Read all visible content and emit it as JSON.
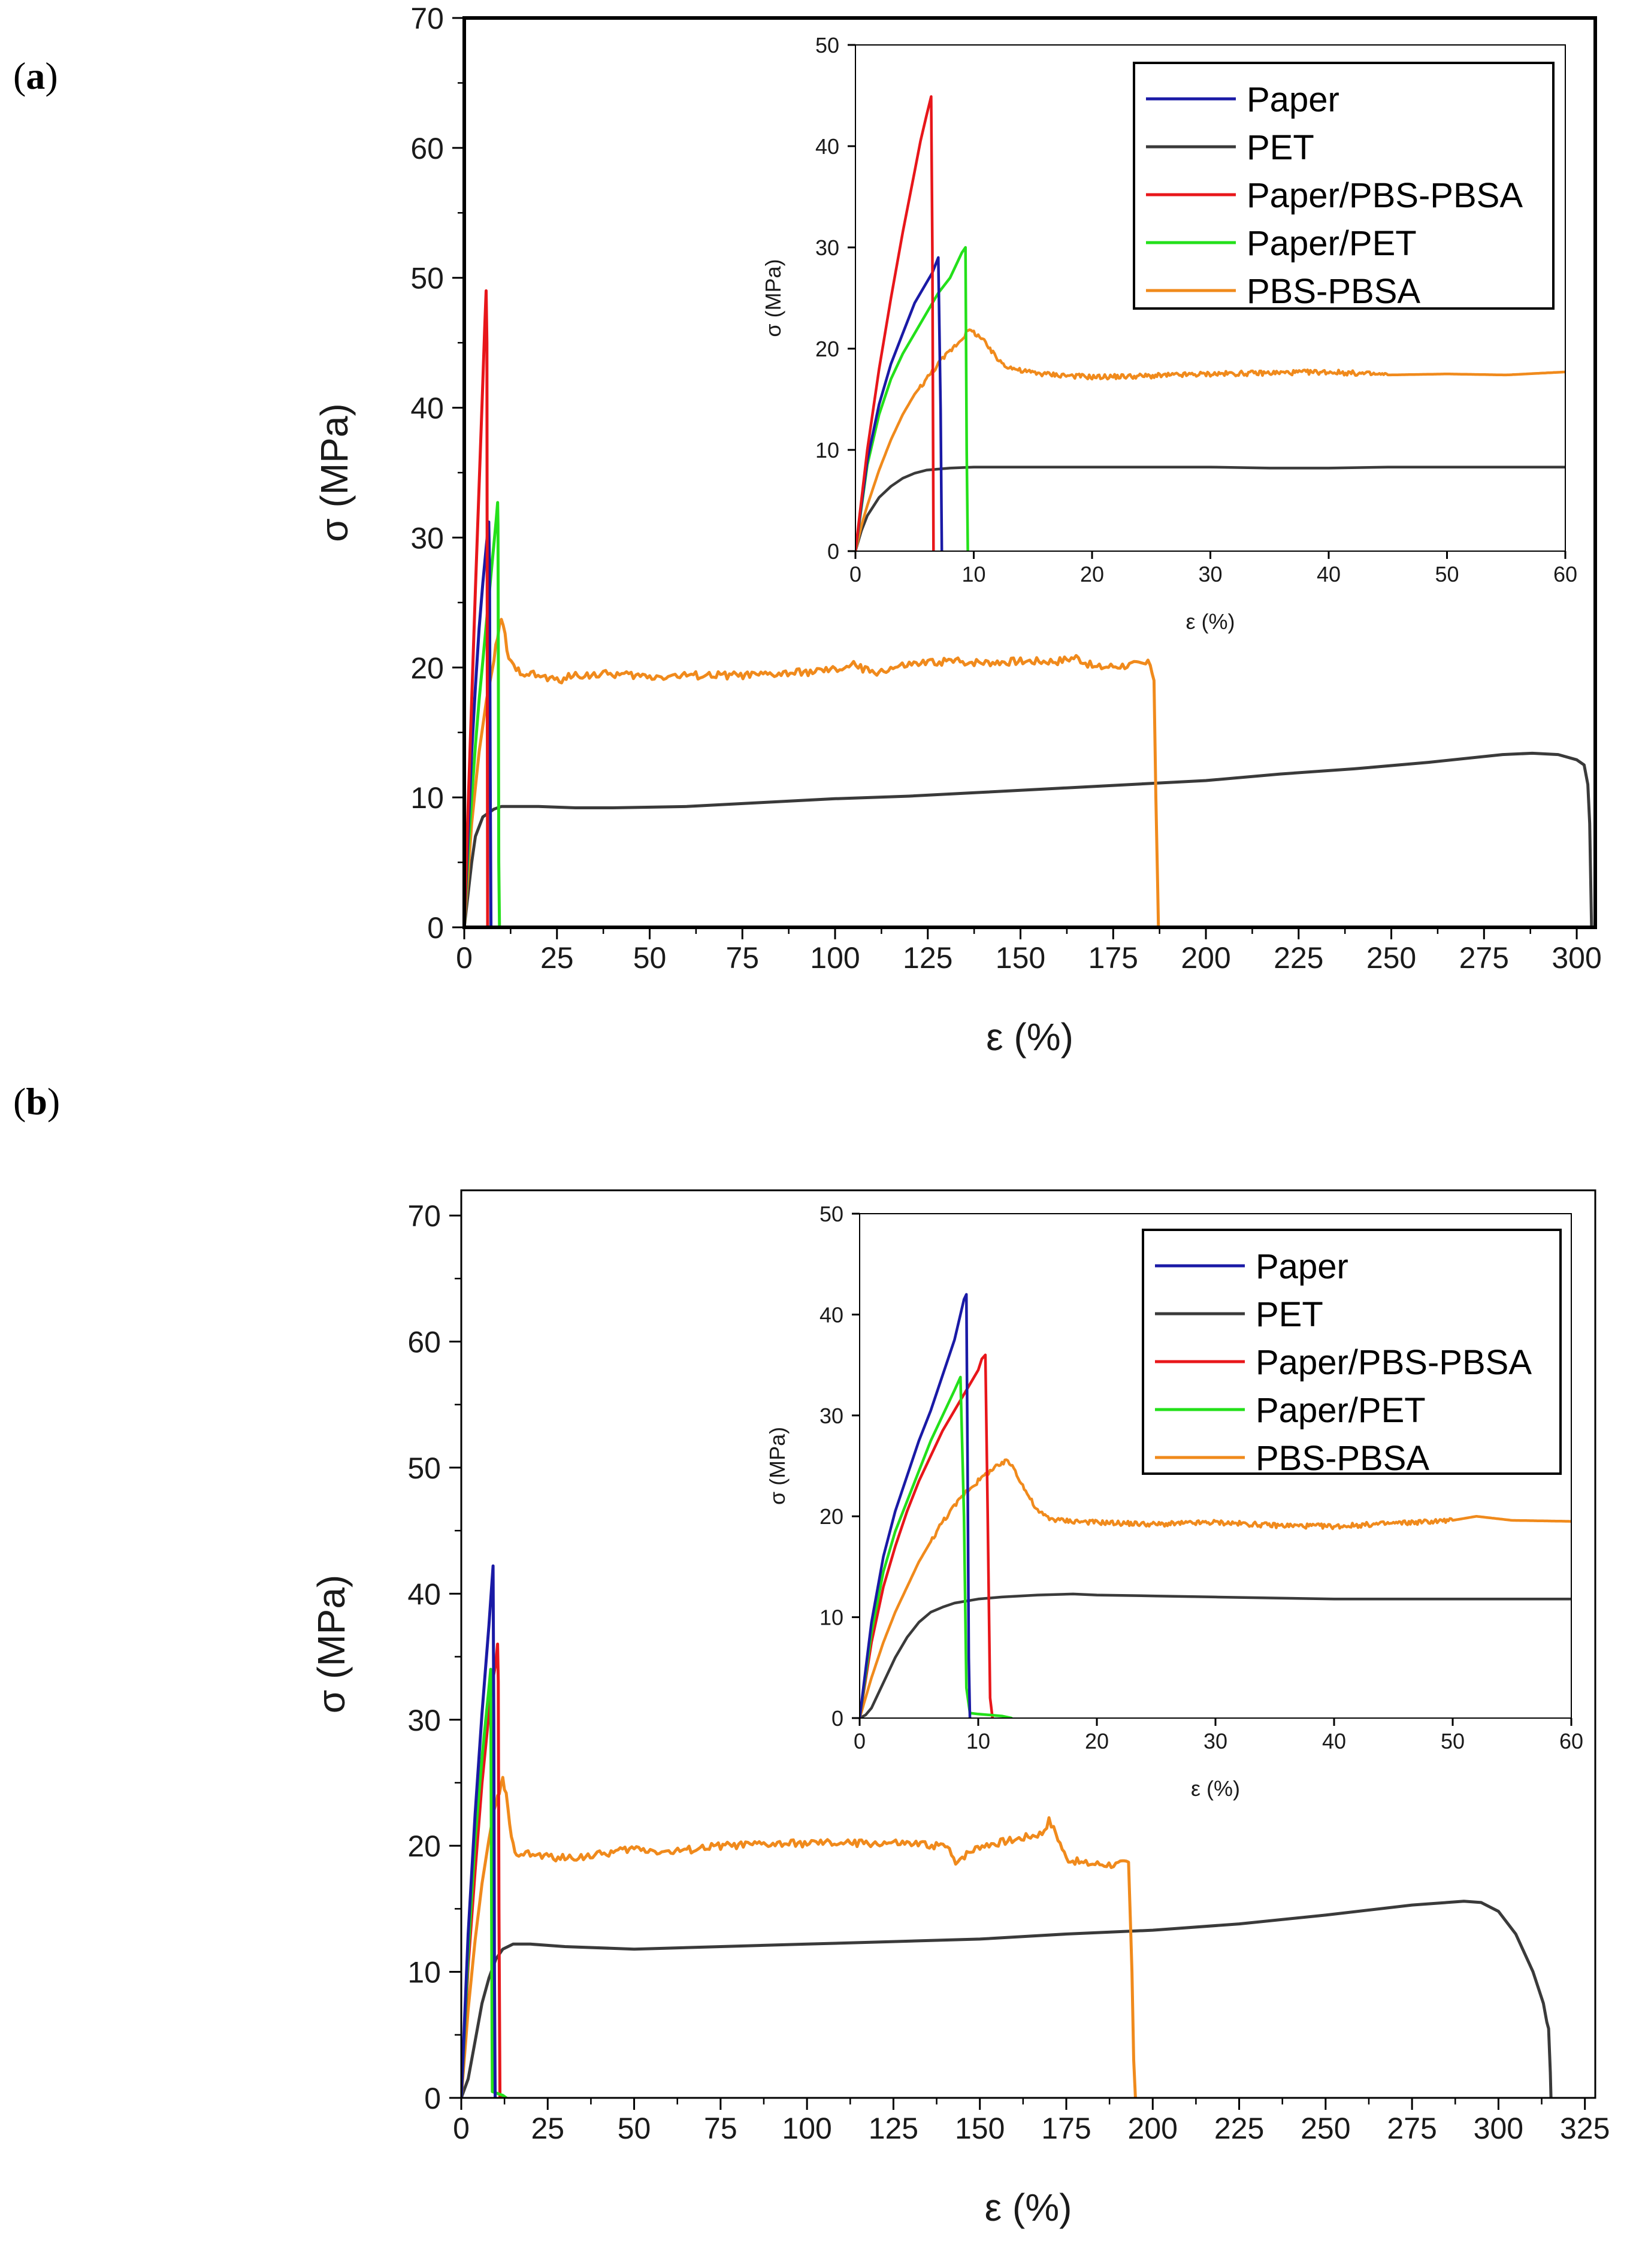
{
  "figure": {
    "panels": [
      {
        "label_open": "(",
        "label": "a",
        "label_close": ")"
      },
      {
        "label_open": "(",
        "label": "b",
        "label_close": ")"
      }
    ]
  },
  "chart_data": [
    {
      "id": "a-main",
      "type": "line",
      "panel": "a",
      "xlabel": "ε (%)",
      "ylabel": "σ (MPa)",
      "xlim": [
        0,
        305
      ],
      "ylim": [
        0,
        70
      ],
      "xticks": [
        0,
        25,
        50,
        75,
        100,
        125,
        150,
        175,
        200,
        225,
        250,
        275,
        300
      ],
      "yticks": [
        0,
        10,
        20,
        30,
        40,
        50,
        60,
        70
      ],
      "series": [
        {
          "name": "PET",
          "color": "#3a3a3a",
          "x": [
            0,
            1,
            2,
            3,
            5,
            8,
            10,
            20,
            30,
            40,
            60,
            80,
            100,
            120,
            140,
            160,
            180,
            200,
            220,
            240,
            260,
            280,
            288,
            295,
            300,
            302,
            303,
            303.5,
            304
          ],
          "y": [
            0,
            2.5,
            5.0,
            7.0,
            8.5,
            9.1,
            9.3,
            9.3,
            9.2,
            9.2,
            9.3,
            9.6,
            9.9,
            10.1,
            10.4,
            10.7,
            11.0,
            11.3,
            11.8,
            12.2,
            12.7,
            13.3,
            13.4,
            13.3,
            12.9,
            12.5,
            11.0,
            8.0,
            0
          ]
        },
        {
          "name": "PBS-PBSA",
          "color": "#f08a1c",
          "noise": 0.3,
          "x": [
            0,
            1,
            2,
            4,
            6,
            8,
            9,
            10,
            11,
            12,
            14,
            18,
            25,
            30,
            40,
            50,
            60,
            80,
            100,
            105,
            110,
            120,
            130,
            140,
            150,
            160,
            165,
            170,
            180,
            185,
            186,
            186.5,
            187,
            187.2
          ],
          "y": [
            0,
            4.0,
            8.0,
            13.5,
            17.5,
            20.5,
            22.5,
            23.6,
            22.5,
            20.5,
            19.8,
            19.5,
            19.0,
            19.4,
            19.5,
            19.3,
            19.4,
            19.4,
            19.8,
            20.2,
            19.6,
            20.2,
            20.5,
            20.4,
            20.5,
            20.5,
            20.8,
            20.0,
            20.2,
            20.3,
            19.0,
            10.0,
            3.0,
            0
          ]
        },
        {
          "name": "Paper/PET",
          "color": "#23e01a",
          "x": [
            0,
            1,
            2,
            3,
            4,
            5,
            6,
            7,
            8,
            8.6,
            9.0,
            9.1,
            9.2,
            9.3,
            9.5
          ],
          "y": [
            0,
            5.5,
            10.0,
            14.0,
            17.5,
            20.5,
            23.5,
            26.5,
            29.5,
            31.3,
            32.7,
            31.0,
            20.0,
            5.0,
            0
          ]
        },
        {
          "name": "Paper",
          "color": "#1a1aa6",
          "x": [
            0,
            1,
            2,
            3,
            4,
            5,
            6,
            6.6,
            6.8,
            7.0,
            7.2
          ],
          "y": [
            0,
            7.0,
            13.5,
            18.5,
            23.0,
            26.5,
            29.5,
            31.2,
            28.0,
            12.0,
            0
          ]
        },
        {
          "name": "Paper/PBS-PBSA",
          "color": "#e8161a",
          "x": [
            0,
            1,
            2,
            3,
            4,
            5,
            5.5,
            5.9,
            6.1,
            6.2,
            6.3
          ],
          "y": [
            0,
            9.0,
            17.5,
            26.0,
            34.0,
            42.0,
            46.0,
            49.0,
            45.0,
            20.0,
            0
          ]
        }
      ]
    },
    {
      "id": "a-inset",
      "type": "line",
      "panel": "a",
      "xlabel": "ε (%)",
      "ylabel": "σ (MPa)",
      "xlim": [
        0,
        60
      ],
      "ylim": [
        0,
        50
      ],
      "xticks": [
        0,
        10,
        20,
        30,
        40,
        50,
        60
      ],
      "yticks": [
        0,
        10,
        20,
        30,
        40,
        50
      ],
      "legend_position": "top-right",
      "legend": [
        "Paper",
        "PET",
        "Paper/PBS-PBSA",
        "Paper/PET",
        "PBS-PBSA"
      ],
      "series": [
        {
          "name": "PET",
          "color": "#3a3a3a",
          "x": [
            0,
            0.5,
            1,
            2,
            3,
            4,
            5,
            6,
            8,
            10,
            15,
            20,
            25,
            30,
            35,
            40,
            45,
            50,
            55,
            60
          ],
          "y": [
            0,
            2.0,
            3.5,
            5.3,
            6.4,
            7.2,
            7.7,
            8.0,
            8.2,
            8.3,
            8.3,
            8.3,
            8.3,
            8.3,
            8.2,
            8.2,
            8.3,
            8.3,
            8.3,
            8.3
          ]
        },
        {
          "name": "PBS-PBSA",
          "color": "#f08a1c",
          "noise": 0.25,
          "x": [
            0,
            0.5,
            1,
            2,
            3,
            4,
            5,
            6,
            7,
            8,
            9,
            9.5,
            10,
            10.5,
            11,
            11.5,
            12,
            12.5,
            13,
            14,
            16,
            20,
            25,
            30,
            35,
            40,
            45,
            50,
            55,
            60
          ],
          "y": [
            0,
            2.5,
            4.5,
            8.0,
            11.0,
            13.5,
            15.5,
            17.0,
            18.5,
            19.8,
            21.0,
            21.8,
            21.6,
            21.2,
            20.5,
            19.7,
            19.0,
            18.5,
            18.2,
            17.8,
            17.5,
            17.2,
            17.3,
            17.5,
            17.6,
            17.7,
            17.4,
            17.5,
            17.4,
            17.7
          ]
        },
        {
          "name": "Paper/PET",
          "color": "#23e01a",
          "x": [
            0,
            1,
            2,
            3,
            4,
            5,
            6,
            7,
            8,
            9,
            9.3,
            9.4,
            9.5
          ],
          "y": [
            0,
            8.5,
            13.5,
            17.0,
            19.5,
            21.5,
            23.5,
            25.5,
            27.0,
            29.5,
            30.0,
            10.0,
            0
          ]
        },
        {
          "name": "Paper",
          "color": "#1a1aa6",
          "x": [
            0,
            1,
            2,
            3,
            4,
            5,
            6,
            6.5,
            7.0,
            7.2,
            7.3
          ],
          "y": [
            0,
            9.0,
            14.5,
            18.5,
            21.5,
            24.5,
            26.5,
            27.5,
            29.0,
            14.0,
            0
          ]
        },
        {
          "name": "Paper/PBS-PBSA",
          "color": "#e8161a",
          "x": [
            0,
            1,
            2,
            3,
            4,
            5,
            5.5,
            6.0,
            6.4,
            6.5,
            6.6
          ],
          "y": [
            0,
            10.0,
            18.0,
            25.0,
            31.5,
            37.5,
            40.5,
            43.0,
            44.9,
            30.0,
            0
          ]
        }
      ]
    },
    {
      "id": "b-main",
      "type": "line",
      "panel": "b",
      "xlabel": "ε (%)",
      "ylabel": "σ (MPa)",
      "xlim": [
        0,
        328
      ],
      "ylim": [
        0,
        72
      ],
      "xticks": [
        0,
        25,
        50,
        75,
        100,
        125,
        150,
        175,
        200,
        225,
        250,
        275,
        300,
        325
      ],
      "yticks": [
        0,
        10,
        20,
        30,
        40,
        50,
        60,
        70
      ],
      "series": [
        {
          "name": "PET",
          "color": "#3a3a3a",
          "x": [
            0,
            2,
            4,
            6,
            8,
            10,
            12,
            15,
            20,
            30,
            50,
            75,
            100,
            125,
            150,
            175,
            200,
            225,
            250,
            275,
            290,
            295,
            300,
            305,
            310,
            313,
            314,
            314.5,
            315,
            315.2
          ],
          "y": [
            0,
            1.5,
            4.5,
            7.5,
            9.5,
            11.0,
            11.8,
            12.2,
            12.2,
            12.0,
            11.8,
            12.0,
            12.2,
            12.4,
            12.6,
            13.0,
            13.3,
            13.8,
            14.5,
            15.3,
            15.6,
            15.5,
            14.8,
            13.0,
            10.0,
            7.5,
            6.0,
            5.5,
            2.0,
            0
          ]
        },
        {
          "name": "PBS-PBSA",
          "color": "#f08a1c",
          "noise": 0.3,
          "x": [
            0,
            2,
            4,
            6,
            8,
            10,
            11,
            12,
            13,
            14,
            15,
            16,
            20,
            30,
            40,
            50,
            60,
            75,
            100,
            125,
            140,
            143,
            150,
            160,
            168,
            170,
            172,
            175,
            180,
            190,
            193,
            194,
            194.5,
            195
          ],
          "y": [
            0,
            7.0,
            12.5,
            17.0,
            20.5,
            23.5,
            24.0,
            25.3,
            24.0,
            21.5,
            20.0,
            19.5,
            19.3,
            19.0,
            19.3,
            19.8,
            19.5,
            20.0,
            20.2,
            20.2,
            20.0,
            18.8,
            20.0,
            20.5,
            21.0,
            22.0,
            21.0,
            19.0,
            18.6,
            18.5,
            18.7,
            10.0,
            3.0,
            0
          ]
        },
        {
          "name": "Paper/PBS-PBSA",
          "color": "#e8161a",
          "x": [
            0,
            2,
            4,
            6,
            8,
            9,
            10,
            10.5,
            10.7,
            10.9,
            11.2,
            13
          ],
          "y": [
            0,
            10.5,
            18.0,
            25.0,
            30.5,
            33.0,
            34.5,
            36.0,
            33.0,
            15.0,
            0,
            0
          ]
        },
        {
          "name": "Paper/PET",
          "color": "#23e01a",
          "x": [
            0,
            2,
            4,
            6,
            8,
            8.5,
            8.7,
            8.9,
            9,
            10,
            12,
            13
          ],
          "y": [
            0,
            11.5,
            20.5,
            27.0,
            32.5,
            34.0,
            20.0,
            5.0,
            0.5,
            0.4,
            0.2,
            0
          ]
        },
        {
          "name": "Paper",
          "color": "#1a1aa6",
          "x": [
            0,
            2,
            4,
            6,
            8,
            9.2,
            9.4,
            9.6,
            9.8
          ],
          "y": [
            0,
            13.0,
            22.5,
            30.5,
            37.5,
            42.2,
            30.0,
            10.0,
            0
          ]
        }
      ]
    },
    {
      "id": "b-inset",
      "type": "line",
      "panel": "b",
      "xlabel": "ε (%)",
      "ylabel": "σ (MPa)",
      "xlim": [
        0,
        60
      ],
      "ylim": [
        0,
        50
      ],
      "xticks": [
        0,
        10,
        20,
        30,
        40,
        50,
        60
      ],
      "yticks": [
        0,
        10,
        20,
        30,
        40,
        50
      ],
      "legend_position": "top-right",
      "legend": [
        "Paper",
        "PET",
        "Paper/PBS-PBSA",
        "Paper/PET",
        "PBS-PBSA"
      ],
      "series": [
        {
          "name": "PET",
          "color": "#3a3a3a",
          "x": [
            0,
            0.5,
            1,
            2,
            3,
            4,
            5,
            6,
            7,
            8,
            10,
            12,
            15,
            18,
            20,
            25,
            30,
            35,
            40,
            45,
            50,
            55,
            60
          ],
          "y": [
            0,
            0.3,
            1.0,
            3.5,
            6.0,
            8.0,
            9.5,
            10.5,
            11.0,
            11.4,
            11.8,
            12.0,
            12.2,
            12.3,
            12.2,
            12.1,
            12.0,
            11.9,
            11.8,
            11.8,
            11.8,
            11.8,
            11.8
          ]
        },
        {
          "name": "PBS-PBSA",
          "color": "#f08a1c",
          "noise": 0.25,
          "x": [
            0,
            1,
            2,
            3,
            4,
            5,
            6,
            7,
            8,
            9,
            10,
            11,
            12,
            12.5,
            13,
            14,
            15,
            16,
            17,
            20,
            25,
            30,
            35,
            40,
            45,
            50,
            52,
            55,
            60
          ],
          "y": [
            0,
            4.0,
            7.5,
            10.5,
            13.0,
            15.5,
            17.5,
            19.5,
            21.0,
            22.5,
            23.5,
            24.5,
            25.2,
            25.5,
            24.8,
            22.5,
            20.5,
            19.8,
            19.6,
            19.4,
            19.2,
            19.4,
            19.1,
            19.0,
            19.3,
            19.6,
            20.0,
            19.6,
            19.5
          ]
        },
        {
          "name": "Paper/PBS-PBSA",
          "color": "#e8161a",
          "x": [
            0,
            1,
            2,
            3,
            4,
            5,
            6,
            7,
            8,
            9,
            10,
            10.3,
            10.6,
            10.8,
            11.0,
            11.2
          ],
          "y": [
            0,
            7.5,
            13.0,
            17.0,
            20.5,
            23.5,
            26.0,
            28.5,
            30.5,
            32.5,
            34.5,
            35.6,
            36.0,
            20.0,
            2.0,
            0
          ]
        },
        {
          "name": "Paper/PET",
          "color": "#23e01a",
          "x": [
            0,
            1,
            2,
            3,
            4,
            5,
            6,
            7,
            8,
            8.5,
            8.8,
            9.0,
            9.3,
            10,
            11,
            12,
            12.8
          ],
          "y": [
            0,
            8.5,
            14.5,
            18.5,
            21.5,
            24.5,
            27.5,
            30.0,
            32.5,
            33.8,
            20.0,
            3.0,
            0.5,
            0.4,
            0.3,
            0.2,
            0
          ]
        },
        {
          "name": "Paper",
          "color": "#1a1aa6",
          "x": [
            0,
            1,
            2,
            3,
            4,
            5,
            6,
            7,
            8,
            8.8,
            9.0,
            9.1,
            9.2,
            9.3
          ],
          "y": [
            0,
            9.5,
            16.0,
            20.5,
            24.0,
            27.5,
            30.5,
            34.0,
            37.5,
            41.5,
            42.0,
            25.0,
            6.0,
            0
          ]
        }
      ]
    }
  ]
}
